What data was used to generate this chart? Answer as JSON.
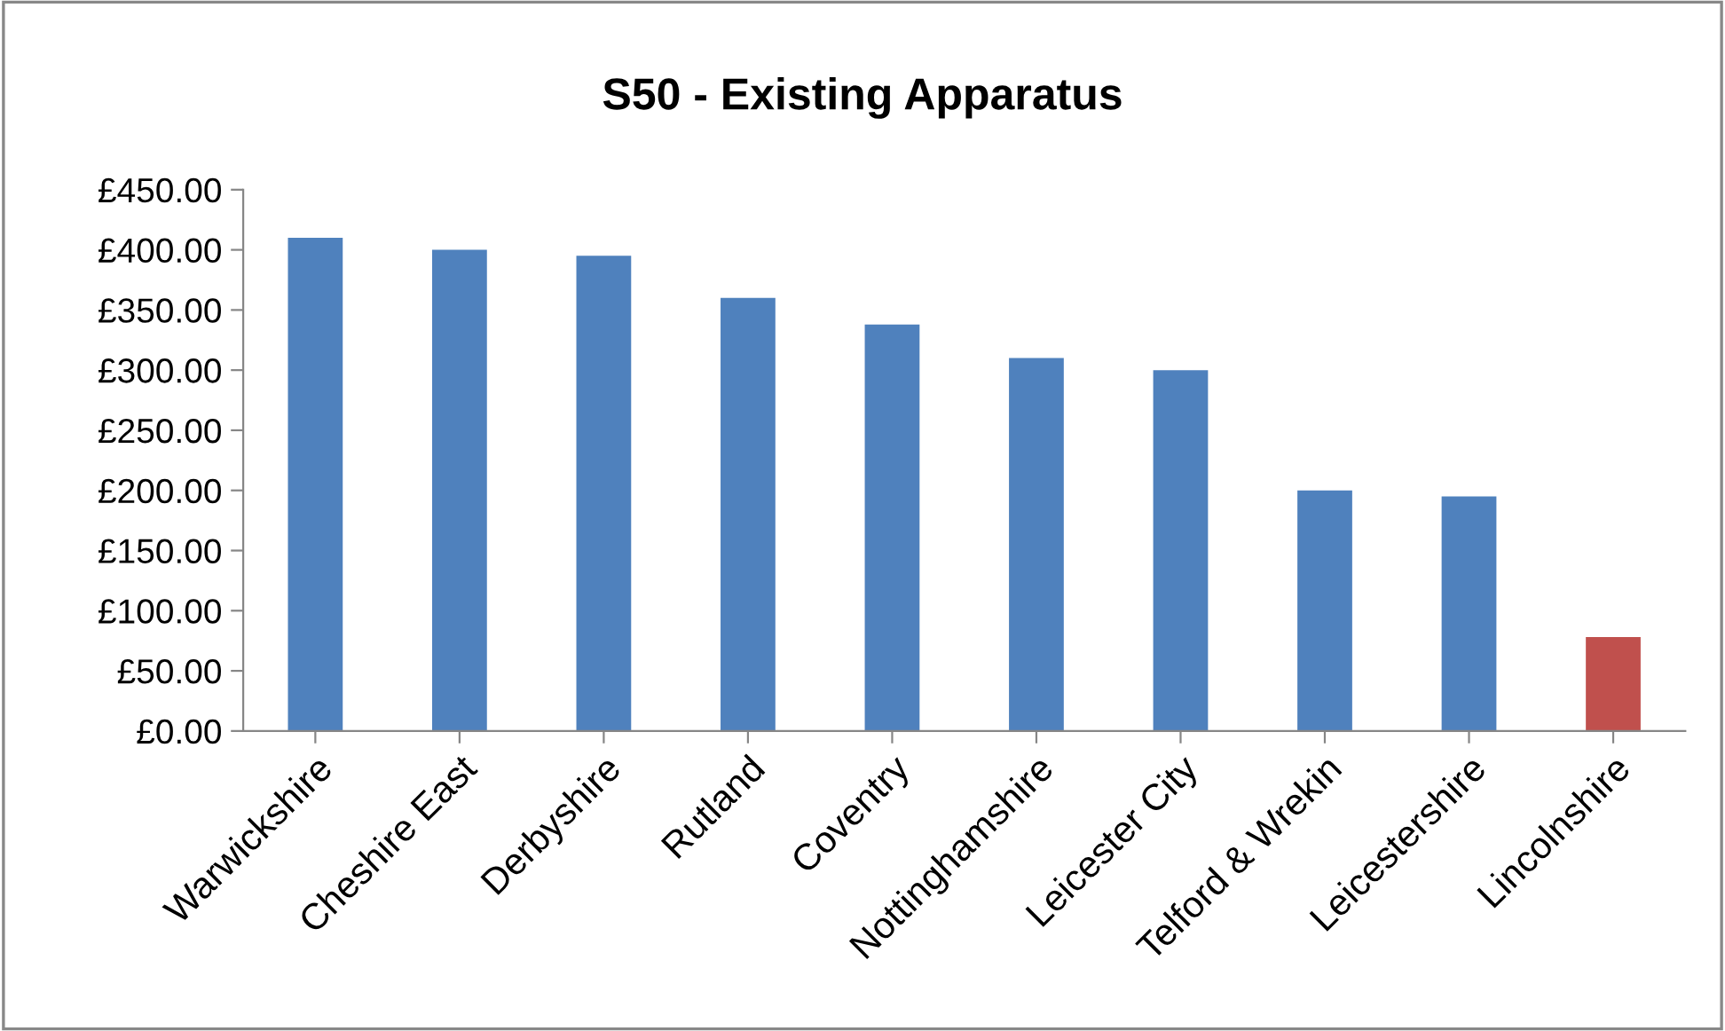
{
  "chart_data": {
    "type": "bar",
    "title": "S50 - Existing Apparatus",
    "categories": [
      "Warwickshire",
      "Cheshire East",
      "Derbyshire",
      "Rutland",
      "Coventry",
      "Nottinghamshire",
      "Leicester City",
      "Telford & Wrekin",
      "Leicestershire",
      "Lincolnshire"
    ],
    "values": [
      410,
      400,
      395,
      360,
      338,
      310,
      300,
      200,
      195,
      78
    ],
    "colors": [
      "#4f81bd",
      "#4f81bd",
      "#4f81bd",
      "#4f81bd",
      "#4f81bd",
      "#4f81bd",
      "#4f81bd",
      "#4f81bd",
      "#4f81bd",
      "#c0504d"
    ],
    "ylim": [
      0,
      450
    ],
    "yticks": [
      {
        "value": 0,
        "label": "£0.00"
      },
      {
        "value": 50,
        "label": "£50.00"
      },
      {
        "value": 100,
        "label": "£100.00"
      },
      {
        "value": 150,
        "label": "£150.00"
      },
      {
        "value": 200,
        "label": "£200.00"
      },
      {
        "value": 250,
        "label": "£250.00"
      },
      {
        "value": 300,
        "label": "£300.00"
      },
      {
        "value": 350,
        "label": "£350.00"
      },
      {
        "value": 400,
        "label": "£400.00"
      },
      {
        "value": 450,
        "label": "£450.00"
      }
    ],
    "grid": false,
    "legend": false
  }
}
